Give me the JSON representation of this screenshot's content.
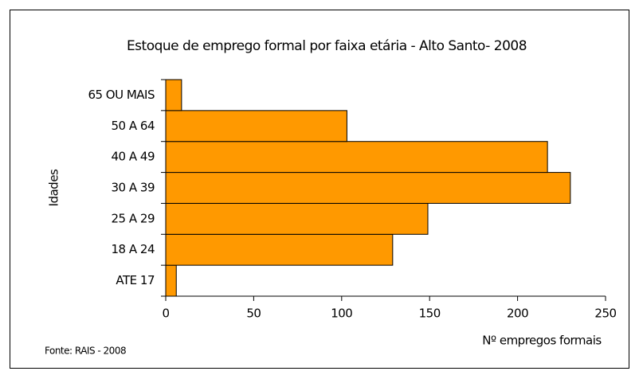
{
  "chart_data": {
    "type": "bar",
    "orientation": "horizontal",
    "title": "Estoque de emprego formal por faixa etária - Alto Santo- 2008",
    "x_label": "Nº empregos formais",
    "y_label": "Idades",
    "source": "Fonte: RAIS - 2008",
    "categories": [
      "ATE 17",
      "18 A 24",
      "25 A 29",
      "30 A 39",
      "40 A 49",
      "50 A 64",
      "65 OU MAIS"
    ],
    "values": [
      6,
      129,
      149,
      230,
      217,
      103,
      9
    ],
    "color": "#ff9900",
    "xlim": [
      0,
      250
    ],
    "xticks": [
      0,
      50,
      100,
      150,
      200,
      250
    ],
    "grid": false
  }
}
